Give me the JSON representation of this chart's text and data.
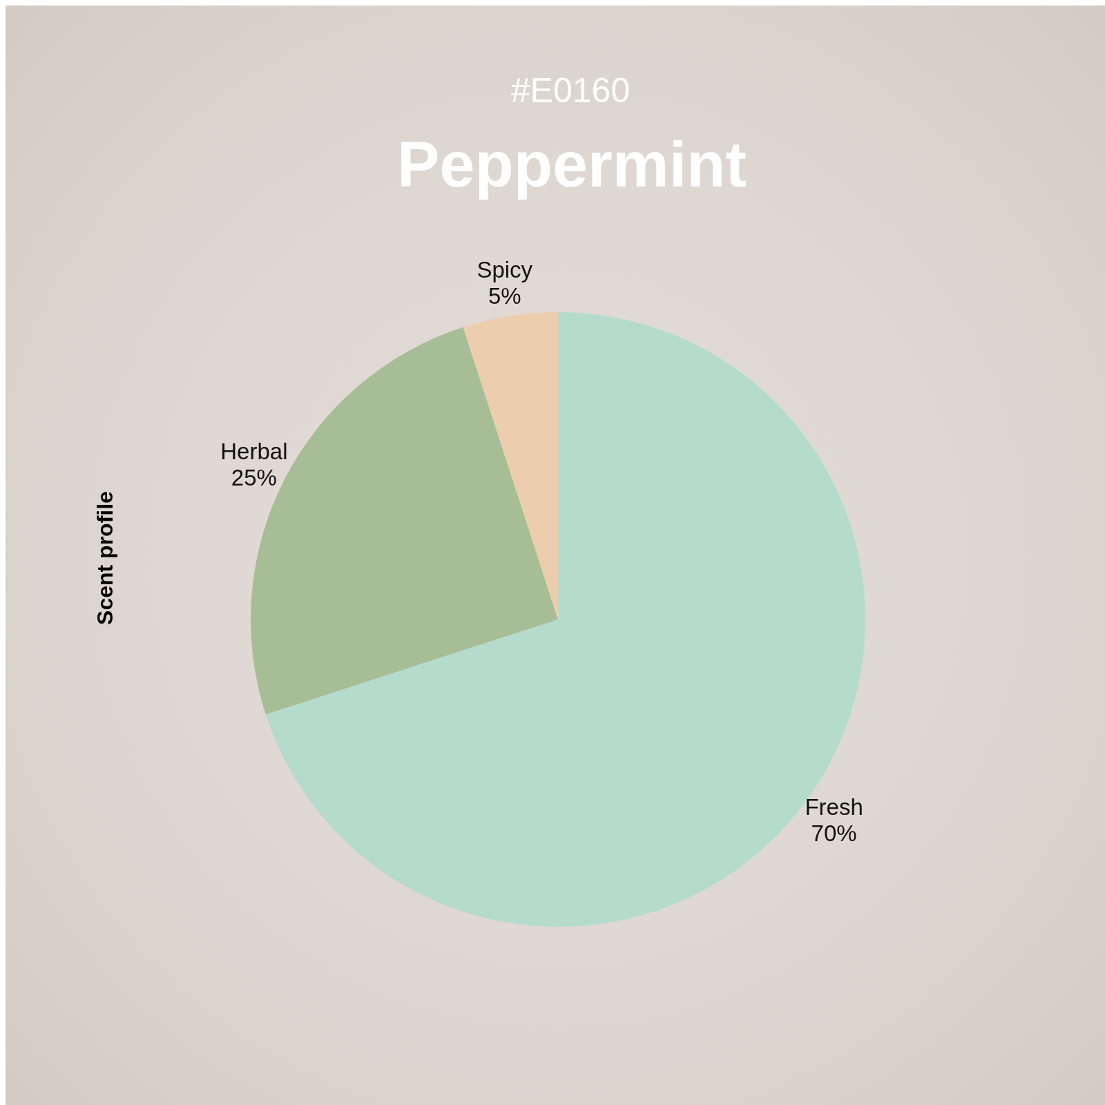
{
  "chart_data": {
    "type": "pie",
    "subtitle": "#E0160",
    "title": "Peppermint",
    "ylabel": "Scent profile",
    "categories": [
      "Fresh",
      "Herbal",
      "Spicy"
    ],
    "values": [
      70,
      25,
      5
    ],
    "value_labels": [
      "70%",
      "25%",
      "5%"
    ],
    "colors": [
      "#b5dbcc",
      "#a7bd95",
      "#eccdae"
    ]
  }
}
